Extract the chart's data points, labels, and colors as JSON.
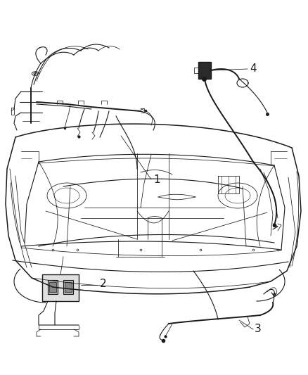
{
  "background_color": "#ffffff",
  "figure_width": 4.38,
  "figure_height": 5.33,
  "dpi": 100,
  "image_data": ""
}
